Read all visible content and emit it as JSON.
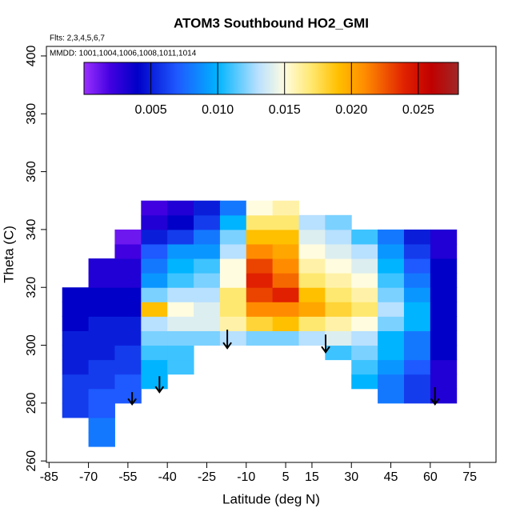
{
  "chart_data": {
    "type": "heatmap",
    "title": "ATOM3 Southbound HO2_GMI",
    "subtitle": "Flts: 2,3,4,5,6,7",
    "annotation": "MMDD: 1001,1004,1006,1008,1011,1014",
    "x_label": "Latitude (deg N)",
    "y_label": "Theta (C)",
    "xlim": [
      -86,
      85
    ],
    "xticks": [
      -85,
      -70,
      -55,
      -40,
      -25,
      -10,
      5,
      15,
      30,
      45,
      60,
      75
    ],
    "ylim": [
      259.5,
      403.3
    ],
    "yticks": [
      260,
      280,
      300,
      320,
      340,
      360,
      380,
      400
    ],
    "x_edges": [
      -80,
      -70,
      -60,
      -50,
      -40,
      -30,
      -20,
      -10,
      0,
      10,
      20,
      30,
      40,
      50,
      60,
      70
    ],
    "y_edges": [
      265,
      270,
      275,
      280,
      285,
      290,
      295,
      300,
      305,
      310,
      315,
      320,
      325,
      330,
      335,
      340,
      345,
      350
    ],
    "values": [
      [
        null,
        0.008,
        null,
        null,
        null,
        null,
        null,
        null,
        null,
        null,
        null,
        null,
        null,
        null,
        null
      ],
      [
        null,
        0.008,
        null,
        null,
        null,
        null,
        null,
        null,
        null,
        null,
        null,
        null,
        null,
        null,
        null
      ],
      [
        0.006,
        0.007,
        null,
        null,
        null,
        null,
        null,
        null,
        null,
        null,
        null,
        null,
        null,
        null,
        null
      ],
      [
        0.006,
        0.007,
        0.007,
        null,
        null,
        null,
        null,
        null,
        null,
        null,
        null,
        null,
        0.008,
        0.006,
        0.003
      ],
      [
        0.006,
        0.006,
        0.007,
        0.01,
        null,
        null,
        null,
        null,
        null,
        null,
        null,
        0.01,
        0.008,
        0.006,
        0.003
      ],
      [
        0.005,
        0.006,
        0.006,
        0.01,
        0.011,
        null,
        null,
        null,
        null,
        null,
        null,
        0.011,
        0.009,
        0.007,
        0.003
      ],
      [
        0.005,
        0.005,
        0.006,
        0.011,
        0.011,
        null,
        null,
        null,
        null,
        null,
        0.011,
        0.012,
        0.01,
        0.008,
        0.004
      ],
      [
        0.005,
        0.005,
        0.005,
        0.012,
        0.012,
        0.012,
        0.013,
        0.012,
        0.012,
        0.013,
        0.014,
        0.013,
        0.01,
        0.008,
        0.004
      ],
      [
        0.004,
        0.005,
        0.005,
        0.013,
        0.014,
        0.014,
        0.016,
        0.018,
        0.019,
        0.017,
        0.016,
        0.015,
        0.012,
        0.01,
        0.004
      ],
      [
        0.004,
        0.004,
        0.004,
        0.019,
        0.015,
        0.014,
        0.017,
        0.021,
        0.021,
        0.02,
        0.018,
        0.017,
        0.013,
        0.01,
        0.004
      ],
      [
        0.004,
        0.004,
        0.004,
        0.012,
        0.013,
        0.013,
        0.017,
        0.023,
        0.024,
        0.019,
        0.017,
        0.016,
        0.012,
        0.009,
        0.004
      ],
      [
        null,
        0.003,
        0.003,
        0.009,
        0.011,
        0.012,
        0.015,
        0.024,
        0.022,
        0.017,
        0.016,
        0.015,
        0.011,
        0.008,
        0.004
      ],
      [
        null,
        0.003,
        0.003,
        0.008,
        0.01,
        0.011,
        0.015,
        0.023,
        0.021,
        0.016,
        0.015,
        0.014,
        0.01,
        0.007,
        0.004
      ],
      [
        null,
        null,
        0.002,
        0.007,
        0.009,
        0.009,
        0.013,
        0.021,
        0.02,
        0.015,
        0.014,
        0.013,
        0.009,
        0.006,
        0.003
      ],
      [
        null,
        null,
        0.001,
        0.005,
        0.006,
        0.008,
        0.012,
        0.019,
        0.019,
        0.014,
        0.013,
        0.011,
        0.008,
        0.005,
        0.003
      ],
      [
        null,
        null,
        null,
        0.003,
        0.004,
        0.006,
        0.01,
        0.017,
        0.017,
        0.013,
        0.012,
        null,
        null,
        null,
        null
      ],
      [
        null,
        null,
        null,
        0.002,
        0.003,
        0.005,
        0.008,
        0.015,
        0.016,
        null,
        null,
        null,
        null,
        null,
        null
      ]
    ],
    "colorbar": {
      "lim": [
        0,
        0.028
      ],
      "ticks": [
        0.005,
        {
          "value": 0.01,
          "label": "0.010"
        },
        0.015,
        {
          "value": 0.02,
          "label": "0.020"
        },
        0.025
      ],
      "stops": [
        {
          "value": 0,
          "color": "#9b30ff"
        },
        {
          "value": 0.002,
          "color": "#4000e0"
        },
        {
          "value": 0.004,
          "color": "#0000c8"
        },
        {
          "value": 0.007,
          "color": "#1e5aff"
        },
        {
          "value": 0.01,
          "color": "#00b4ff"
        },
        {
          "value": 0.013,
          "color": "#b8e0ff"
        },
        {
          "value": 0.015,
          "color": "#fffce0"
        },
        {
          "value": 0.017,
          "color": "#ffe870"
        },
        {
          "value": 0.019,
          "color": "#ffc000"
        },
        {
          "value": 0.021,
          "color": "#ff8c00"
        },
        {
          "value": 0.024,
          "color": "#e02000"
        },
        {
          "value": 0.026,
          "color": "#c00000"
        },
        {
          "value": 0.028,
          "color": "#a02828"
        }
      ]
    },
    "arrows": [
      {
        "x": -53.4,
        "top": 283.8,
        "tip": 279.6
      },
      {
        "x": -43,
        "top": 289.3,
        "tip": 283.8
      },
      {
        "x": -17.2,
        "top": 305.4,
        "tip": 299
      },
      {
        "x": 20.2,
        "top": 303.7,
        "tip": 297.6
      },
      {
        "x": 61.8,
        "top": 285.5,
        "tip": 279.6
      }
    ]
  }
}
